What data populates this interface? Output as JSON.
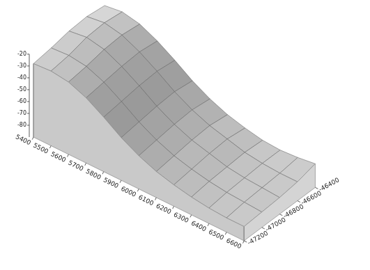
{
  "chart_data": {
    "type": "surface",
    "x": [
      5400,
      5500,
      5600,
      5700,
      5800,
      5900,
      6000,
      6100,
      6200,
      6300,
      6400,
      6500,
      6600
    ],
    "y": [
      -47200,
      -47000,
      -46800,
      -46600,
      -46400
    ],
    "z": [
      [
        -28,
        -27,
        -29,
        -35,
        -44,
        -54,
        -62,
        -68,
        -72,
        -75,
        -77,
        -78,
        -78
      ],
      [
        -26,
        -25,
        -27,
        -33,
        -42,
        -52,
        -60,
        -66,
        -70,
        -73,
        -75,
        -76,
        -77
      ],
      [
        -23,
        -21,
        -24,
        -31,
        -40,
        -50,
        -58,
        -64,
        -68,
        -72,
        -74,
        -75,
        -76
      ],
      [
        -22,
        -20,
        -23,
        -30,
        -39,
        -49,
        -57,
        -63,
        -67,
        -71,
        -73,
        -74,
        -74
      ],
      [
        -24,
        -22,
        -25,
        -32,
        -41,
        -51,
        -59,
        -65,
        -69,
        -72,
        -73,
        -72,
        -70
      ]
    ],
    "xlim": [
      5400,
      6600
    ],
    "ylim": [
      -47200,
      -46400
    ],
    "zlim": [
      -90,
      -20
    ],
    "xticks": [
      5400,
      5500,
      5600,
      5700,
      5800,
      5900,
      6000,
      6100,
      6200,
      6300,
      6400,
      6500,
      6600
    ],
    "yticks": [
      -47200,
      -47000,
      -46800,
      -46600,
      -46400
    ],
    "zticks": [
      -80,
      -70,
      -60,
      -50,
      -40,
      -30,
      -20
    ],
    "color": "#d9d9d9",
    "grid": true
  }
}
